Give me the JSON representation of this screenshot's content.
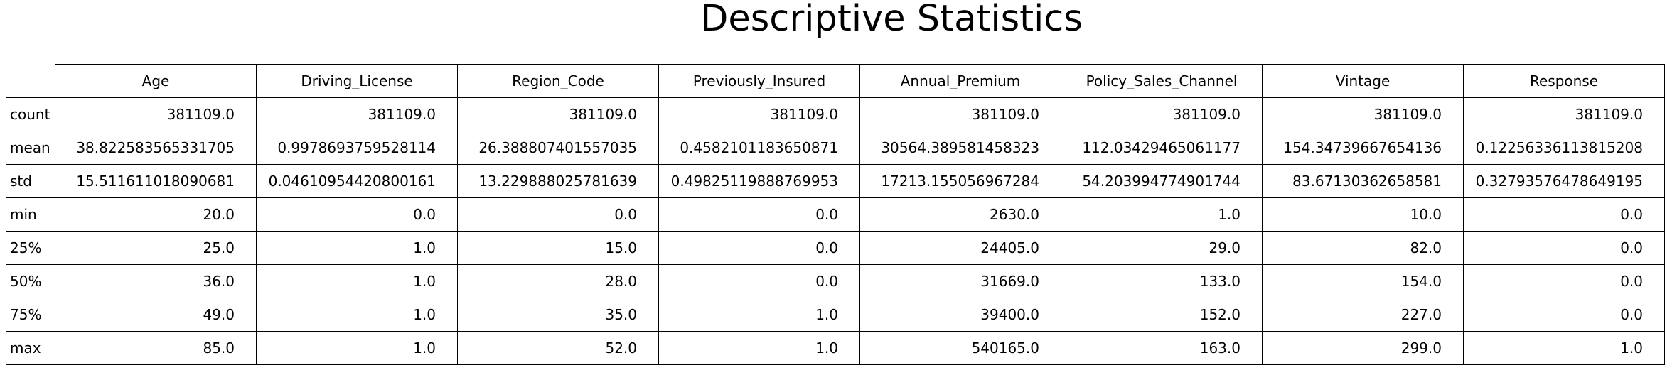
{
  "chart_data": {
    "type": "table",
    "title": "Descriptive Statistics",
    "columns": [
      "Age",
      "Driving_License",
      "Region_Code",
      "Previously_Insured",
      "Annual_Premium",
      "Policy_Sales_Channel",
      "Vintage",
      "Response"
    ],
    "rows": [
      {
        "label": "count",
        "values": [
          "381109.0",
          "381109.0",
          "381109.0",
          "381109.0",
          "381109.0",
          "381109.0",
          "381109.0",
          "381109.0"
        ]
      },
      {
        "label": "mean",
        "values": [
          "38.822583565331705",
          "0.9978693759528114",
          "26.388807401557035",
          "0.4582101183650871",
          "30564.389581458323",
          "112.03429465061177",
          "154.34739667654136",
          "0.12256336113815208"
        ]
      },
      {
        "label": "std",
        "values": [
          "15.511611018090681",
          "0.04610954420800161",
          "13.229888025781639",
          "0.49825119888769953",
          "17213.155056967284",
          "54.203994774901744",
          "83.67130362658581",
          "0.32793576478649195"
        ]
      },
      {
        "label": "min",
        "values": [
          "20.0",
          "0.0",
          "0.0",
          "0.0",
          "2630.0",
          "1.0",
          "10.0",
          "0.0"
        ]
      },
      {
        "label": "25%",
        "values": [
          "25.0",
          "1.0",
          "15.0",
          "0.0",
          "24405.0",
          "29.0",
          "82.0",
          "0.0"
        ]
      },
      {
        "label": "50%",
        "values": [
          "36.0",
          "1.0",
          "28.0",
          "0.0",
          "31669.0",
          "133.0",
          "154.0",
          "0.0"
        ]
      },
      {
        "label": "75%",
        "values": [
          "49.0",
          "1.0",
          "35.0",
          "1.0",
          "39400.0",
          "152.0",
          "227.0",
          "0.0"
        ]
      },
      {
        "label": "max",
        "values": [
          "85.0",
          "1.0",
          "52.0",
          "1.0",
          "540165.0",
          "163.0",
          "299.0",
          "1.0"
        ]
      }
    ],
    "grid": true
  }
}
